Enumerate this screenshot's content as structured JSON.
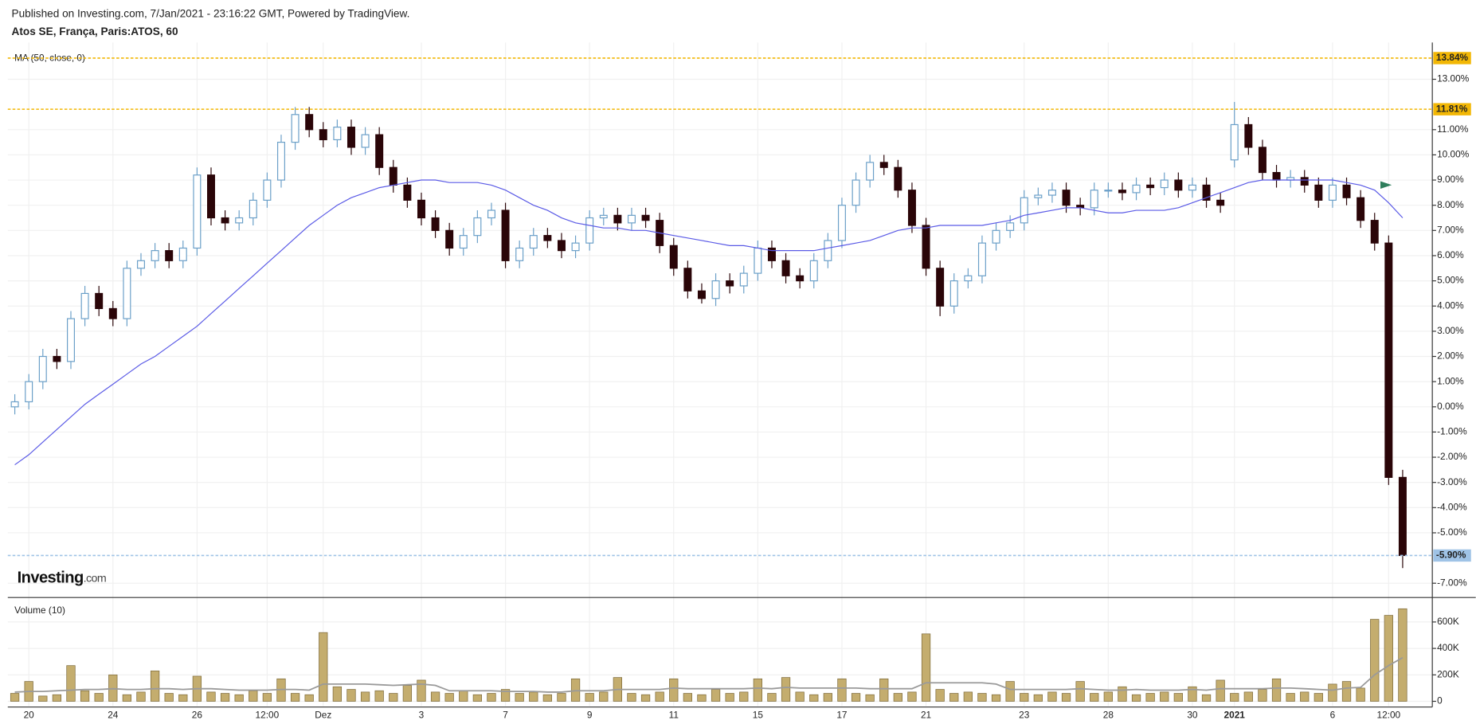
{
  "header": {
    "published": "Published on Investing.com, 7/Jan/2021 - 23:16:22 GMT, Powered by TradingView.",
    "symbol": "Atos SE, França, Paris:ATOS, 60"
  },
  "logo": {
    "brand": "Investing",
    "suffix": ".com"
  },
  "chart_data": [
    {
      "type": "candlestick",
      "categories": [
        null,
        "20",
        null,
        null,
        null,
        null,
        null,
        "24",
        null,
        null,
        null,
        null,
        null,
        "26",
        null,
        null,
        null,
        null,
        "12:00",
        null,
        null,
        null,
        "Dez",
        null,
        null,
        null,
        null,
        null,
        null,
        "3",
        null,
        null,
        null,
        null,
        null,
        "7",
        null,
        null,
        null,
        null,
        null,
        "9",
        null,
        null,
        null,
        null,
        null,
        "11",
        null,
        null,
        null,
        null,
        null,
        "15",
        null,
        null,
        null,
        null,
        null,
        "17",
        null,
        null,
        null,
        null,
        null,
        "21",
        null,
        null,
        null,
        null,
        null,
        null,
        "23",
        null,
        null,
        null,
        null,
        null,
        "28",
        null,
        null,
        null,
        null,
        null,
        "30",
        null,
        null,
        "2021",
        null,
        null,
        null,
        null,
        null,
        null,
        "6",
        null,
        null,
        null,
        "12:00",
        null
      ],
      "open": [
        0.0,
        0.2,
        1.0,
        2.0,
        1.8,
        3.5,
        4.5,
        3.9,
        3.5,
        5.5,
        5.8,
        6.2,
        5.8,
        6.3,
        9.2,
        7.5,
        7.3,
        7.5,
        8.2,
        9.0,
        10.5,
        11.6,
        11.0,
        10.6,
        11.1,
        10.3,
        10.8,
        9.5,
        8.8,
        8.2,
        7.5,
        7.0,
        6.3,
        6.8,
        7.5,
        7.8,
        5.8,
        6.3,
        6.8,
        6.6,
        6.2,
        6.5,
        7.5,
        7.6,
        7.3,
        7.6,
        7.4,
        6.4,
        5.5,
        4.6,
        4.3,
        5.0,
        4.8,
        5.3,
        6.3,
        5.8,
        5.2,
        5.0,
        5.8,
        6.6,
        8.0,
        9.0,
        9.7,
        9.5,
        8.6,
        7.2,
        5.5,
        4.0,
        5.0,
        5.2,
        6.5,
        7.0,
        7.3,
        8.3,
        8.4,
        8.6,
        8.0,
        7.9,
        8.6,
        8.6,
        8.5,
        8.8,
        8.7,
        9.0,
        8.6,
        8.8,
        8.2,
        9.8,
        11.2,
        10.3,
        9.3,
        9.0,
        9.1,
        8.8,
        8.2,
        8.8,
        8.3,
        7.4,
        6.5,
        -2.8
      ],
      "high": [
        0.5,
        1.3,
        2.3,
        2.3,
        3.8,
        4.8,
        4.8,
        4.2,
        5.8,
        6.1,
        6.5,
        6.5,
        6.6,
        9.5,
        9.5,
        7.8,
        7.8,
        8.5,
        9.3,
        10.8,
        11.9,
        11.9,
        11.3,
        11.4,
        11.4,
        11.1,
        11.1,
        9.8,
        9.1,
        8.5,
        7.8,
        7.3,
        7.1,
        7.8,
        8.1,
        8.1,
        6.6,
        7.1,
        7.1,
        6.9,
        6.8,
        7.8,
        7.9,
        7.9,
        7.9,
        7.9,
        7.7,
        6.7,
        5.8,
        4.9,
        5.3,
        5.3,
        5.6,
        6.6,
        6.6,
        6.1,
        5.5,
        6.1,
        6.9,
        8.3,
        9.3,
        10.0,
        10.0,
        9.8,
        8.9,
        7.5,
        5.8,
        5.3,
        5.5,
        6.8,
        7.3,
        7.6,
        8.6,
        8.7,
        8.9,
        8.9,
        8.3,
        8.9,
        8.9,
        8.9,
        9.1,
        9.1,
        9.3,
        9.3,
        9.1,
        9.1,
        8.5,
        12.1,
        11.5,
        10.6,
        9.6,
        9.4,
        9.4,
        9.1,
        9.1,
        9.1,
        8.6,
        7.7,
        6.8,
        -2.5
      ],
      "low": [
        -0.3,
        -0.1,
        0.7,
        1.5,
        1.5,
        3.2,
        3.6,
        3.2,
        3.2,
        5.2,
        5.5,
        5.5,
        5.5,
        6.0,
        7.2,
        7.0,
        7.0,
        7.2,
        7.9,
        8.7,
        10.2,
        10.7,
        10.3,
        10.3,
        10.0,
        10.0,
        9.2,
        8.5,
        7.9,
        7.2,
        6.7,
        6.0,
        6.0,
        6.5,
        7.2,
        5.5,
        5.5,
        6.0,
        6.3,
        5.9,
        5.9,
        6.2,
        7.2,
        7.0,
        7.0,
        7.1,
        6.1,
        5.2,
        4.3,
        4.1,
        4.0,
        4.5,
        4.5,
        5.0,
        5.5,
        4.9,
        4.7,
        4.7,
        5.5,
        6.3,
        7.7,
        8.7,
        9.2,
        8.3,
        6.9,
        5.2,
        3.6,
        3.7,
        4.7,
        4.9,
        6.2,
        6.7,
        7.0,
        8.0,
        8.1,
        7.7,
        7.6,
        7.6,
        8.3,
        8.2,
        8.2,
        8.4,
        8.4,
        8.3,
        8.3,
        7.9,
        7.7,
        9.5,
        10.0,
        9.0,
        8.7,
        8.7,
        8.5,
        7.9,
        7.9,
        8.0,
        7.1,
        6.2,
        -3.1,
        -6.4
      ],
      "close": [
        0.2,
        1.0,
        2.0,
        1.8,
        3.5,
        4.5,
        3.9,
        3.5,
        5.5,
        5.8,
        6.2,
        5.8,
        6.3,
        9.2,
        7.5,
        7.3,
        7.5,
        8.2,
        9.0,
        10.5,
        11.6,
        11.0,
        10.6,
        11.1,
        10.3,
        10.8,
        9.5,
        8.8,
        8.2,
        7.5,
        7.0,
        6.3,
        6.8,
        7.5,
        7.8,
        5.8,
        6.3,
        6.8,
        6.6,
        6.2,
        6.5,
        7.5,
        7.6,
        7.3,
        7.6,
        7.4,
        6.4,
        5.5,
        4.6,
        4.3,
        5.0,
        4.8,
        5.3,
        6.3,
        5.8,
        5.2,
        5.0,
        5.8,
        6.6,
        8.0,
        9.0,
        9.7,
        9.5,
        8.6,
        7.2,
        5.5,
        4.0,
        5.0,
        5.2,
        6.5,
        7.0,
        7.3,
        8.3,
        8.4,
        8.6,
        8.0,
        7.9,
        8.6,
        8.6,
        8.5,
        8.8,
        8.7,
        9.0,
        8.6,
        8.8,
        8.2,
        8.0,
        11.2,
        10.3,
        9.3,
        9.0,
        9.1,
        8.8,
        8.2,
        8.8,
        8.3,
        7.4,
        6.5,
        -2.8,
        -5.9
      ],
      "up_color": "#6a9fc8",
      "down_color": "#2a0508",
      "series": [
        {
          "name": "MA (50, close, 0)",
          "color": "#5a5ae6",
          "values": [
            -2.3,
            -1.9,
            -1.4,
            -0.9,
            -0.4,
            0.1,
            0.5,
            0.9,
            1.3,
            1.7,
            2.0,
            2.4,
            2.8,
            3.2,
            3.7,
            4.2,
            4.7,
            5.2,
            5.7,
            6.2,
            6.7,
            7.2,
            7.6,
            8.0,
            8.3,
            8.5,
            8.7,
            8.8,
            8.9,
            9.0,
            9.0,
            8.9,
            8.9,
            8.9,
            8.8,
            8.6,
            8.3,
            8.0,
            7.8,
            7.5,
            7.3,
            7.2,
            7.1,
            7.1,
            7.0,
            7.0,
            6.9,
            6.8,
            6.7,
            6.6,
            6.5,
            6.4,
            6.4,
            6.3,
            6.2,
            6.2,
            6.2,
            6.2,
            6.3,
            6.4,
            6.5,
            6.6,
            6.8,
            7.0,
            7.1,
            7.1,
            7.2,
            7.2,
            7.2,
            7.2,
            7.3,
            7.4,
            7.6,
            7.7,
            7.8,
            7.9,
            7.9,
            7.8,
            7.7,
            7.7,
            7.8,
            7.8,
            7.8,
            7.9,
            8.1,
            8.3,
            8.5,
            8.7,
            8.9,
            9.0,
            9.0,
            9.0,
            9.0,
            9.0,
            9.0,
            8.9,
            8.8,
            8.6,
            8.1,
            7.5
          ]
        }
      ],
      "ylim": [
        -7.53,
        14.46
      ],
      "yticks": [
        {
          "value": 13,
          "label": "13.00%"
        },
        {
          "value": 11,
          "label": "11.00%"
        },
        {
          "value": 10,
          "label": "10.00%"
        },
        {
          "value": 9,
          "label": "9.00%"
        },
        {
          "value": 8,
          "label": "8.00%"
        },
        {
          "value": 7,
          "label": "7.00%"
        },
        {
          "value": 6,
          "label": "6.00%"
        },
        {
          "value": 5,
          "label": "5.00%"
        },
        {
          "value": 4,
          "label": "4.00%"
        },
        {
          "value": 3,
          "label": "3.00%"
        },
        {
          "value": 2,
          "label": "2.00%"
        },
        {
          "value": 1,
          "label": "1.00%"
        },
        {
          "value": 0,
          "label": "0.00%"
        },
        {
          "value": -1,
          "label": "-1.00%"
        },
        {
          "value": -2,
          "label": "-2.00%"
        },
        {
          "value": -3,
          "label": "-3.00%"
        },
        {
          "value": -4,
          "label": "-4.00%"
        },
        {
          "value": -5,
          "label": "-5.00%"
        },
        {
          "value": -7,
          "label": "-7.00%"
        }
      ],
      "price_lines": [
        {
          "value": 13.84,
          "label": "13.84%",
          "color": "#f2b705"
        },
        {
          "value": 11.81,
          "label": "11.81%",
          "color": "#f2b705"
        },
        {
          "value": -5.9,
          "label": "-5.90%",
          "color": "#9fc3e6"
        }
      ],
      "grid": true
    },
    {
      "type": "bar",
      "title": "Volume (10)",
      "color": "#c4ad6e",
      "values": [
        60000,
        150000,
        40000,
        50000,
        270000,
        80000,
        60000,
        200000,
        50000,
        70000,
        230000,
        60000,
        50000,
        190000,
        70000,
        60000,
        50000,
        80000,
        60000,
        170000,
        60000,
        50000,
        520000,
        110000,
        90000,
        70000,
        80000,
        60000,
        120000,
        160000,
        70000,
        60000,
        80000,
        50000,
        60000,
        90000,
        60000,
        70000,
        50000,
        60000,
        170000,
        60000,
        70000,
        180000,
        60000,
        50000,
        70000,
        170000,
        60000,
        50000,
        90000,
        60000,
        70000,
        170000,
        60000,
        180000,
        70000,
        50000,
        60000,
        170000,
        60000,
        50000,
        170000,
        60000,
        70000,
        510000,
        90000,
        60000,
        70000,
        60000,
        50000,
        150000,
        60000,
        50000,
        70000,
        60000,
        150000,
        60000,
        70000,
        110000,
        50000,
        60000,
        70000,
        60000,
        110000,
        50000,
        160000,
        60000,
        70000,
        90000,
        170000,
        60000,
        70000,
        60000,
        130000,
        150000,
        100000,
        620000,
        650000,
        700000
      ],
      "line": {
        "color": "#9a9a9a",
        "values": [
          70000,
          75000,
          75000,
          80000,
          85000,
          90000,
          90000,
          95000,
          90000,
          90000,
          95000,
          95000,
          90000,
          95000,
          95000,
          90000,
          85000,
          85000,
          85000,
          90000,
          90000,
          85000,
          130000,
          130000,
          130000,
          130000,
          125000,
          120000,
          125000,
          130000,
          120000,
          80000,
          80000,
          80000,
          80000,
          75000,
          75000,
          75000,
          70000,
          70000,
          80000,
          80000,
          80000,
          90000,
          90000,
          90000,
          90000,
          100000,
          95000,
          95000,
          95000,
          95000,
          95000,
          100000,
          95000,
          105000,
          100000,
          100000,
          100000,
          100000,
          100000,
          95000,
          95000,
          95000,
          95000,
          140000,
          140000,
          140000,
          140000,
          140000,
          130000,
          90000,
          90000,
          90000,
          90000,
          90000,
          95000,
          90000,
          85000,
          85000,
          90000,
          85000,
          85000,
          85000,
          90000,
          85000,
          95000,
          95000,
          95000,
          95000,
          100000,
          100000,
          95000,
          90000,
          85000,
          100000,
          105000,
          200000,
          270000,
          330000
        ]
      },
      "ylim": [
        -36000,
        735000
      ],
      "yticks": [
        0,
        {
          "value": 200000,
          "label": "200K"
        },
        {
          "value": 400000,
          "label": "400K"
        },
        {
          "value": 600000,
          "label": "600K"
        }
      ]
    }
  ]
}
